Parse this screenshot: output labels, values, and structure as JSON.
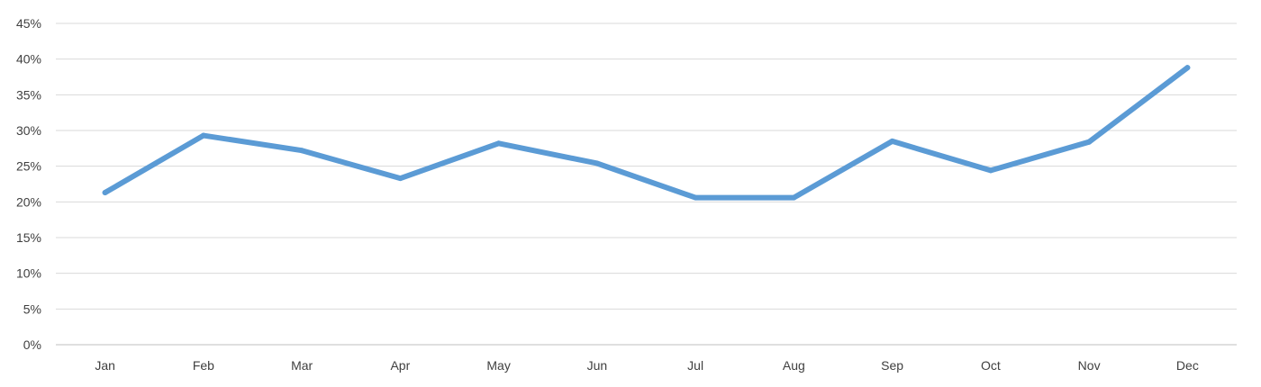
{
  "chart_data": {
    "type": "line",
    "title": "",
    "xlabel": "",
    "ylabel": "",
    "categories": [
      "Jan",
      "Feb",
      "Mar",
      "Apr",
      "May",
      "Jun",
      "Jul",
      "Aug",
      "Sep",
      "Oct",
      "Nov",
      "Dec"
    ],
    "series": [
      {
        "values": [
          21.3,
          29.3,
          27.2,
          23.3,
          28.2,
          25.4,
          20.6,
          20.6,
          28.5,
          24.4,
          28.4,
          38.8
        ]
      }
    ],
    "ylim": [
      0,
      45
    ],
    "yticks": [
      0,
      5,
      10,
      15,
      20,
      25,
      30,
      35,
      40,
      45
    ],
    "ytick_labels": [
      "0%",
      "5%",
      "10%",
      "15%",
      "20%",
      "25%",
      "30%",
      "35%",
      "40%",
      "45%"
    ],
    "grid": true,
    "legend": "none",
    "colors": {
      "series": "#5b9bd5",
      "grid": "#d9d9d9",
      "text": "#404040"
    }
  }
}
